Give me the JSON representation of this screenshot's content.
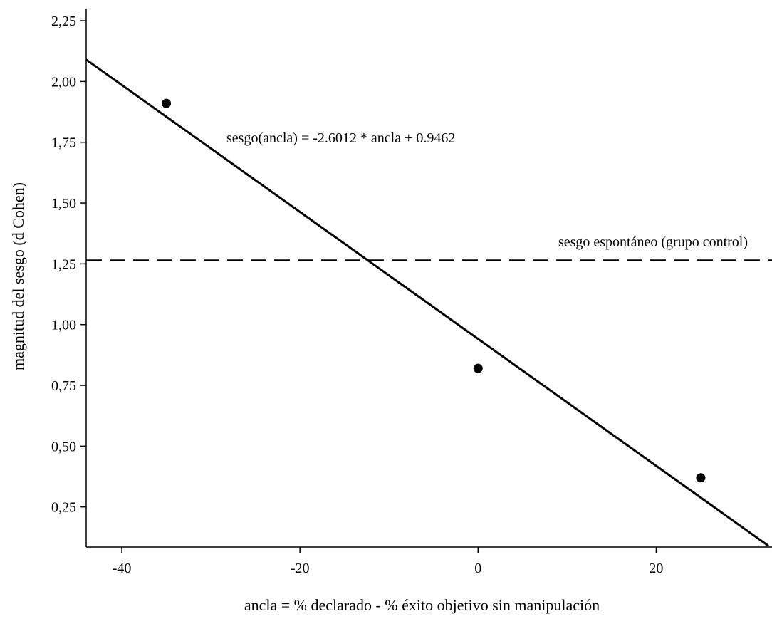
{
  "chart_data": {
    "type": "scatter",
    "title": "",
    "xlabel": "ancla = % declarado - % éxito objetivo sin manipulación",
    "ylabel": "magnitud del sesgo (d Cohen)",
    "xlim": [
      -44,
      33
    ],
    "ylim": [
      0.085,
      2.3
    ],
    "x_ticks": [
      -40,
      -20,
      0,
      20
    ],
    "x_tick_labels": [
      "-40",
      "-20",
      "0",
      "20"
    ],
    "y_ticks": [
      0.25,
      0.5,
      0.75,
      1.0,
      1.25,
      1.5,
      1.75,
      2.0,
      2.25
    ],
    "y_tick_labels": [
      "0,25",
      "0,50",
      "0,75",
      "1,00",
      "1,25",
      "1,50",
      "1,75",
      "2,00",
      "2,25"
    ],
    "grid": false,
    "points": [
      {
        "x": -35,
        "y": 1.91
      },
      {
        "x": 0,
        "y": 0.82
      },
      {
        "x": 25,
        "y": 0.37
      }
    ],
    "regression_line": {
      "x": [
        -44,
        32.6
      ],
      "y": [
        2.09,
        0.09
      ],
      "label": "sesgo(ancla) = -2.6012 * ancla + 0.9462"
    },
    "reference_line": {
      "y": 1.265,
      "label": "sesgo espontáneo (grupo control)",
      "style": "dashed"
    },
    "colors": {
      "points": "#000000",
      "lines": "#000000"
    }
  }
}
